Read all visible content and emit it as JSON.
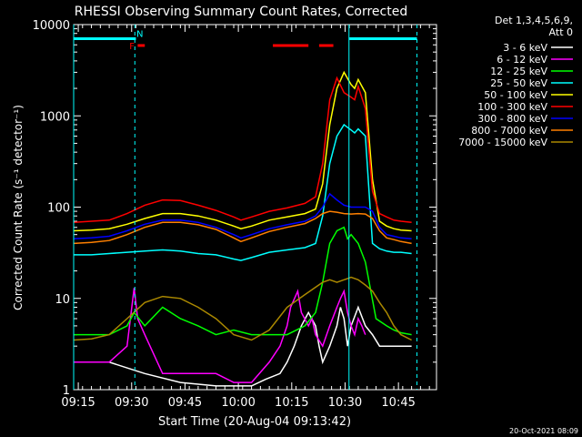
{
  "chart_data": {
    "type": "line",
    "title": "RHESSI Observing Summary Count Rates, Corrected",
    "xlabel": "Start Time (20-Aug-04 09:13:42)",
    "ylabel": "Corrected Count Rate (s⁻¹ detector⁻¹)",
    "y_scale": "log",
    "xlim": [
      0,
      102
    ],
    "ylim": [
      1,
      10000
    ],
    "x_ticks": [
      {
        "t": 1.3,
        "label": "09:15"
      },
      {
        "t": 16.3,
        "label": "09:30"
      },
      {
        "t": 31.3,
        "label": "09:45"
      },
      {
        "t": 46.3,
        "label": "10:00"
      },
      {
        "t": 61.3,
        "label": "10:15"
      },
      {
        "t": 76.3,
        "label": "10:30"
      },
      {
        "t": 91.3,
        "label": "10:45"
      }
    ],
    "y_ticks": [
      {
        "v": 1,
        "label": "1"
      },
      {
        "v": 10,
        "label": "10"
      },
      {
        "v": 100,
        "label": "100"
      },
      {
        "v": 1000,
        "label": "1000"
      },
      {
        "v": 10000,
        "label": "10000"
      }
    ],
    "legend_header": [
      "Det 1,3,4,5,6,9,",
      "Att 0"
    ],
    "legend_placement": "top-right outside",
    "series": [
      {
        "name": "3 - 6 keV",
        "color": "#ffffff",
        "x": [
          0,
          10,
          20,
          30,
          40,
          50,
          54,
          58,
          60,
          62,
          64,
          66,
          68,
          69,
          70,
          72,
          74,
          75,
          76,
          77,
          78,
          80,
          82,
          84,
          86,
          88,
          95
        ],
        "y": [
          2,
          2,
          1.5,
          1.2,
          1.1,
          1.1,
          1.3,
          1.5,
          2,
          3,
          5,
          7,
          5,
          3,
          2,
          3,
          5,
          8,
          6,
          3,
          5,
          8,
          5,
          4,
          3,
          3,
          3
        ]
      },
      {
        "name": "6 - 12 keV",
        "color": "#ff00ff",
        "x": [
          0,
          10,
          15,
          17,
          18,
          20,
          25,
          30,
          35,
          40,
          45,
          50,
          55,
          58,
          60,
          61,
          63,
          64,
          66,
          67,
          68,
          70,
          72,
          74,
          75,
          76,
          77,
          78,
          79,
          80,
          81,
          82
        ],
        "y": [
          2,
          2,
          3,
          13,
          6,
          4,
          1.5,
          1.5,
          1.5,
          1.5,
          1.2,
          1.2,
          2,
          3,
          5,
          8,
          12,
          7,
          5,
          6,
          4,
          3,
          5,
          8,
          10,
          12,
          7,
          5,
          4,
          6,
          5,
          4
        ]
      },
      {
        "name": "12 - 25 keV",
        "color": "#00ff00",
        "x": [
          0,
          10,
          15,
          17,
          20,
          25,
          30,
          35,
          40,
          45,
          50,
          55,
          60,
          65,
          68,
          70,
          72,
          74,
          76,
          77,
          78,
          80,
          82,
          85,
          88,
          90,
          92,
          95
        ],
        "y": [
          4,
          4,
          5,
          7,
          5,
          8,
          6,
          5,
          4,
          4.5,
          4,
          4,
          4,
          5,
          7,
          15,
          40,
          55,
          60,
          45,
          50,
          40,
          25,
          6,
          5,
          4.5,
          4.2,
          4
        ]
      },
      {
        "name": "25 - 50 keV",
        "color": "#00ffff",
        "x": [
          0,
          5,
          10,
          15,
          20,
          25,
          30,
          35,
          40,
          45,
          47,
          50,
          55,
          60,
          65,
          68,
          70,
          72,
          74,
          76,
          78,
          79,
          80,
          82,
          84,
          86,
          88,
          90,
          92,
          95
        ],
        "y": [
          30,
          30,
          31,
          32,
          33,
          34,
          33,
          31,
          30,
          27,
          26,
          28,
          32,
          34,
          36,
          40,
          80,
          300,
          600,
          800,
          700,
          650,
          720,
          600,
          40,
          35,
          33,
          32,
          32,
          31
        ]
      },
      {
        "name": "50 - 100 keV",
        "color": "#ffff00",
        "x": [
          0,
          5,
          10,
          15,
          20,
          25,
          30,
          35,
          40,
          45,
          47,
          50,
          55,
          60,
          65,
          68,
          70,
          72,
          74,
          76,
          78,
          79,
          80,
          82,
          84,
          86,
          88,
          90,
          92,
          95
        ],
        "y": [
          55,
          56,
          58,
          65,
          75,
          85,
          85,
          80,
          72,
          62,
          58,
          62,
          72,
          78,
          85,
          95,
          180,
          800,
          2000,
          3000,
          2200,
          2000,
          2500,
          1800,
          200,
          70,
          62,
          58,
          56,
          55
        ]
      },
      {
        "name": "100 - 300 keV",
        "color": "#ff0000",
        "x": [
          0,
          5,
          10,
          15,
          20,
          25,
          30,
          35,
          40,
          45,
          47,
          50,
          55,
          60,
          65,
          68,
          70,
          72,
          74,
          76,
          78,
          79,
          80,
          82,
          84,
          86,
          88,
          90,
          92,
          95
        ],
        "y": [
          68,
          70,
          72,
          85,
          105,
          120,
          118,
          105,
          92,
          78,
          72,
          78,
          90,
          98,
          110,
          130,
          300,
          1500,
          2600,
          1800,
          1600,
          1500,
          2100,
          1200,
          150,
          85,
          78,
          72,
          70,
          68
        ]
      },
      {
        "name": "300 - 800 keV",
        "color": "#0000ff",
        "x": [
          0,
          5,
          10,
          15,
          20,
          25,
          30,
          35,
          40,
          45,
          47,
          50,
          55,
          60,
          65,
          68,
          70,
          72,
          74,
          76,
          78,
          80,
          82,
          84,
          86,
          88,
          90,
          92,
          95
        ],
        "y": [
          45,
          46,
          48,
          55,
          65,
          72,
          72,
          68,
          60,
          50,
          46,
          50,
          58,
          64,
          70,
          80,
          100,
          140,
          120,
          105,
          100,
          100,
          100,
          90,
          60,
          50,
          48,
          46,
          45
        ]
      },
      {
        "name": "800 - 7000 keV",
        "color": "#ff8000",
        "x": [
          0,
          5,
          10,
          15,
          20,
          25,
          30,
          35,
          40,
          45,
          47,
          50,
          55,
          60,
          65,
          68,
          70,
          72,
          74,
          76,
          78,
          80,
          82,
          84,
          86,
          88,
          90,
          92,
          95
        ],
        "y": [
          40,
          41,
          43,
          50,
          60,
          68,
          68,
          64,
          57,
          46,
          42,
          46,
          54,
          60,
          66,
          75,
          85,
          90,
          88,
          85,
          84,
          85,
          84,
          75,
          55,
          46,
          44,
          42,
          40
        ]
      },
      {
        "name": "7000 - 15000 keV",
        "color": "#aa8800",
        "x": [
          0,
          5,
          10,
          15,
          20,
          25,
          30,
          35,
          40,
          45,
          50,
          55,
          60,
          65,
          70,
          72,
          74,
          76,
          78,
          80,
          82,
          84,
          86,
          88,
          90,
          92,
          95
        ],
        "y": [
          3.5,
          3.6,
          4,
          6,
          9,
          10.5,
          10,
          8,
          6,
          4,
          3.5,
          4.5,
          8,
          11,
          15,
          16,
          15,
          16,
          17,
          16,
          14,
          12,
          9,
          7,
          5,
          4,
          3.5
        ]
      }
    ],
    "annotations": {
      "flag_bars": [
        {
          "color": "#00ffff",
          "x_start": 0,
          "x_end": 17.5,
          "y": 7000
        },
        {
          "color": "#00ffff",
          "x_start": 77.5,
          "x_end": 96.5,
          "y": 7000
        },
        {
          "color": "#ff0000",
          "x_start": 18,
          "x_end": 20,
          "y": 5900
        },
        {
          "color": "#ff0000",
          "x_start": 56,
          "x_end": 66,
          "y": 5900
        },
        {
          "color": "#ff0000",
          "x_start": 69,
          "x_end": 73,
          "y": 5900
        }
      ],
      "flag_letters": [
        {
          "text": "F",
          "color": "#ff0000",
          "x": 16.4,
          "y": 5900
        },
        {
          "text": "N",
          "color": "#00ffff",
          "x": 18.6,
          "y": 8000
        }
      ],
      "dashed_vlines": [
        {
          "x": 17.2,
          "color": "#00ffff"
        },
        {
          "x": 96.5,
          "color": "#00ffff"
        }
      ],
      "solid_vlines": [
        {
          "x": 0,
          "color": "#00ffff"
        },
        {
          "x": 77.4,
          "color": "#00ffff"
        }
      ]
    },
    "footer_date": "20-Oct-2021 08:09"
  }
}
